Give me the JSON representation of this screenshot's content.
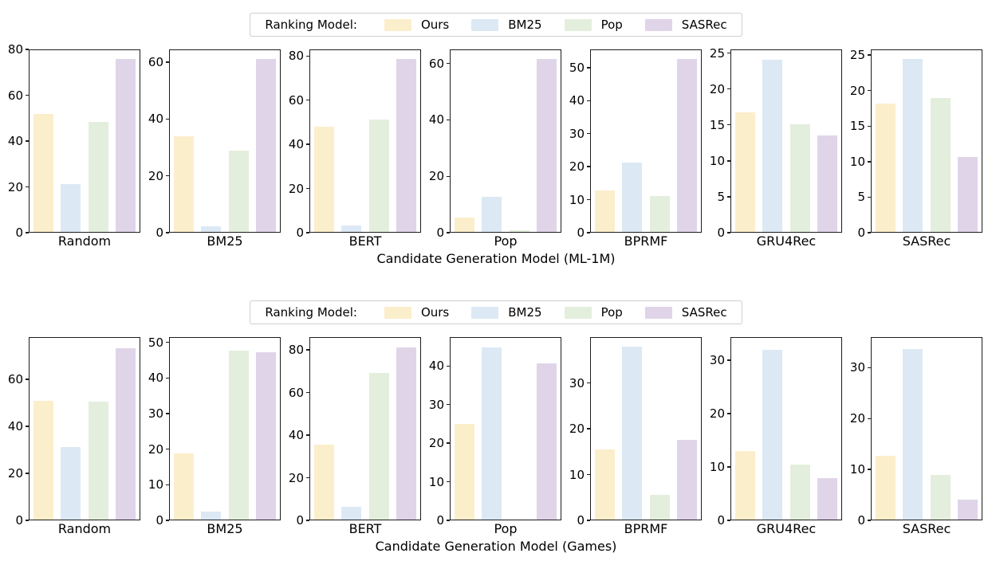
{
  "colors": {
    "Ours": "#fbeecb",
    "BM25": "#dce9f5",
    "Pop": "#e4eedd",
    "SASRec": "#e0d4e9",
    "spine": "#1c1c1c"
  },
  "legend": {
    "title": "Ranking Model:",
    "entries": [
      "Ours",
      "BM25",
      "Pop",
      "SASRec"
    ]
  },
  "chart_data": [
    {
      "type": "bar",
      "dataset": "ML-1M",
      "xlabel": "Candidate Generation Model (ML-1M)",
      "series_names": [
        "Ours",
        "BM25",
        "Pop",
        "SASRec"
      ],
      "legend_position": "top-center",
      "grid": false,
      "subplots": [
        {
          "category": "Random",
          "ylim": [
            0,
            80
          ],
          "yticks": [
            0,
            20,
            40,
            60,
            80
          ],
          "values": [
            52,
            21,
            48.5,
            76
          ]
        },
        {
          "category": "BM25",
          "ylim": [
            0,
            64.5
          ],
          "yticks": [
            0,
            20,
            40,
            60
          ],
          "values": [
            34,
            2,
            29,
            61.5
          ]
        },
        {
          "category": "BERT",
          "ylim": [
            0,
            83
          ],
          "yticks": [
            0,
            20,
            40,
            60,
            80
          ],
          "values": [
            48,
            3,
            51.5,
            79
          ]
        },
        {
          "category": "Pop",
          "ylim": [
            0,
            65
          ],
          "yticks": [
            0,
            20,
            40,
            60
          ],
          "values": [
            5,
            12.5,
            0.7,
            62
          ]
        },
        {
          "category": "BPRMF",
          "ylim": [
            0,
            55.5
          ],
          "yticks": [
            0,
            10,
            20,
            30,
            40,
            50
          ],
          "values": [
            12.7,
            21.3,
            11,
            52.8
          ]
        },
        {
          "category": "GRU4Rec",
          "ylim": [
            0,
            25.5
          ],
          "yticks": [
            0,
            5,
            10,
            15,
            20,
            25
          ],
          "values": [
            16.8,
            24.2,
            15.1,
            13.5
          ]
        },
        {
          "category": "SASRec",
          "ylim": [
            0,
            25.8
          ],
          "yticks": [
            0,
            5,
            10,
            15,
            20,
            25
          ],
          "values": [
            18.2,
            24.6,
            19,
            10.6
          ]
        }
      ]
    },
    {
      "type": "bar",
      "dataset": "Games",
      "xlabel": "Candidate Generation Model (Games)",
      "series_names": [
        "Ours",
        "BM25",
        "Pop",
        "SASRec"
      ],
      "legend_position": "top-center",
      "grid": false,
      "subplots": [
        {
          "category": "Random",
          "ylim": [
            0,
            78
          ],
          "yticks": [
            0,
            20,
            40,
            60
          ],
          "values": [
            51,
            31,
            50.7,
            73.5
          ]
        },
        {
          "category": "BM25",
          "ylim": [
            0,
            51.5
          ],
          "yticks": [
            0,
            10,
            20,
            30,
            40,
            50
          ],
          "values": [
            18.8,
            2.3,
            48,
            47.5
          ]
        },
        {
          "category": "BERT",
          "ylim": [
            0,
            86
          ],
          "yticks": [
            0,
            20,
            40,
            60,
            80
          ],
          "values": [
            35.5,
            6,
            69.5,
            81.5
          ]
        },
        {
          "category": "Pop",
          "ylim": [
            0,
            47.5
          ],
          "yticks": [
            0,
            10,
            20,
            30,
            40
          ],
          "values": [
            25,
            45,
            0,
            40.8
          ]
        },
        {
          "category": "BPRMF",
          "ylim": [
            0,
            40
          ],
          "yticks": [
            0,
            10,
            20,
            30
          ],
          "values": [
            15.5,
            38,
            5.5,
            17.5
          ]
        },
        {
          "category": "GRU4Rec",
          "ylim": [
            0,
            34.3
          ],
          "yticks": [
            0,
            10,
            20,
            30
          ],
          "values": [
            13,
            32,
            10.4,
            7.8
          ]
        },
        {
          "category": "SASRec",
          "ylim": [
            0,
            36
          ],
          "yticks": [
            0,
            10,
            20,
            30
          ],
          "values": [
            12.6,
            33.8,
            8.8,
            3.9
          ]
        }
      ]
    }
  ]
}
